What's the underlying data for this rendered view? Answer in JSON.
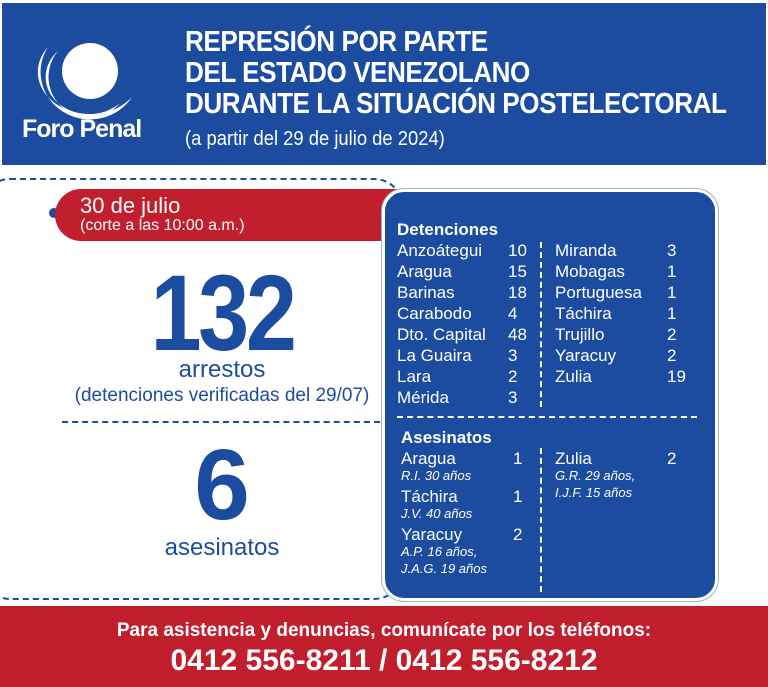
{
  "brand": {
    "name": "Foro Penal"
  },
  "header": {
    "title_lines": [
      "REPRESIÓN POR PARTE",
      "DEL ESTADO VENEZOLANO",
      "DURANTE LA SITUACIÓN POSTELECTORAL"
    ],
    "subtitle": "(a partir del 29 de julio de 2024)"
  },
  "date": {
    "day": "30 de julio",
    "cutoff": "(corte a las 10:00 a.m.)"
  },
  "summary": {
    "arrests": "132",
    "arrests_label": "arrestos",
    "arrests_note": "(detenciones verificadas del 29/07)",
    "killings": "6",
    "killings_label": "asesinatos"
  },
  "detentions": {
    "title": "Detenciones",
    "left": [
      [
        "Anzoátegui",
        "10"
      ],
      [
        "Aragua",
        "15"
      ],
      [
        "Barinas",
        "18"
      ],
      [
        "Carabodo",
        "4"
      ],
      [
        "Dto. Capital",
        "48"
      ],
      [
        "La Guaira",
        "3"
      ],
      [
        "Lara",
        "2"
      ],
      [
        "Mérida",
        "3"
      ]
    ],
    "right": [
      [
        "Miranda",
        "3"
      ],
      [
        "Mobagas",
        "1"
      ],
      [
        "Portuguesa",
        "1"
      ],
      [
        "Táchira",
        "1"
      ],
      [
        "Trujillo",
        "2"
      ],
      [
        "Yaracuy",
        "2"
      ],
      [
        "Zulia",
        "19"
      ]
    ]
  },
  "killings": {
    "title": "Asesinatos",
    "left": [
      {
        "state": "Aragua",
        "count": "1",
        "victims": [
          "R.I. 30 años"
        ]
      },
      {
        "state": "Táchira",
        "count": "1",
        "victims": [
          "J.V. 40 años"
        ]
      },
      {
        "state": "Yaracuy",
        "count": "2",
        "victims": [
          "A.P. 16 años,",
          "J.A.G. 19 años"
        ]
      }
    ],
    "right": [
      {
        "state": "Zulia",
        "count": "2",
        "victims": [
          "G.R. 29 años,",
          "I.J.F. 15 años"
        ]
      }
    ]
  },
  "footer": {
    "text": "Para asistencia y denuncias, comunícate por los teléfonos:",
    "phones": "0412 556-8211 / 0412 556-8212"
  },
  "colors": {
    "blue": "#1b4c9f",
    "red": "#c21f2e"
  }
}
